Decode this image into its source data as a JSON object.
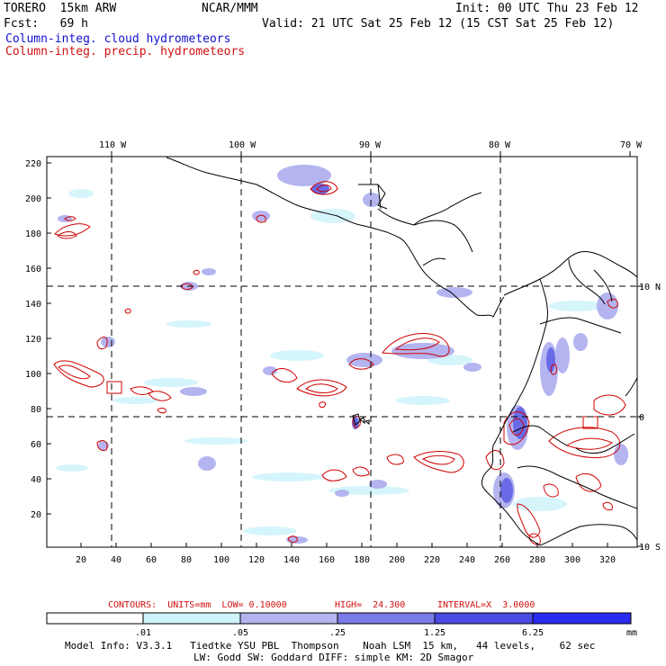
{
  "header": {
    "model_title": "TORERO  15km ARW",
    "forecast": "Fcst:   69 h",
    "center": "NCAR/MMM",
    "init": "Init: 00 UTC Thu 23 Feb 12",
    "valid": "Valid: 21 UTC Sat 25 Feb 12 (15 CST Sat 25 Feb 12)",
    "field1": "Column-integ. cloud hydrometeors",
    "field2": "Column-integ. precip. hydrometeors"
  },
  "map": {
    "top_labels": [
      "110 W",
      "100 W",
      "90 W",
      "80 W",
      "70 W"
    ],
    "right_labels": [
      "10 N",
      "0",
      "10 S"
    ],
    "y_ticks": [
      "220",
      "200",
      "180",
      "160",
      "140",
      "120",
      "100",
      "80",
      "60",
      "40",
      "20"
    ],
    "x_ticks": [
      "20",
      "40",
      "60",
      "80",
      "100",
      "120",
      "140",
      "160",
      "180",
      "200",
      "220",
      "240",
      "260",
      "280",
      "300",
      "320"
    ]
  },
  "contour_info": {
    "units": "CONTOURS:  UNITS=mm  LOW= 0.10000",
    "high": "HIGH=  24.300",
    "interval": "INTERVAL=X  3.0000"
  },
  "colorbar": {
    "levels": [
      ".01",
      ".05",
      ".25",
      "1.25",
      "6.25"
    ],
    "unit": "mm",
    "colors": [
      "#ffffff",
      "#d0f4fb",
      "#b4b4f0",
      "#7a7ae8",
      "#4a4ae4",
      "#2a2af0"
    ]
  },
  "footer": {
    "line1": "Model Info: V3.3.1   Tiedtke YSU PBL  Thompson    Noah LSM  15 km,   44 levels,    62 sec",
    "line2": "LW: Godd SW: Goddard DIFF: simple KM: 2D Smagor"
  }
}
